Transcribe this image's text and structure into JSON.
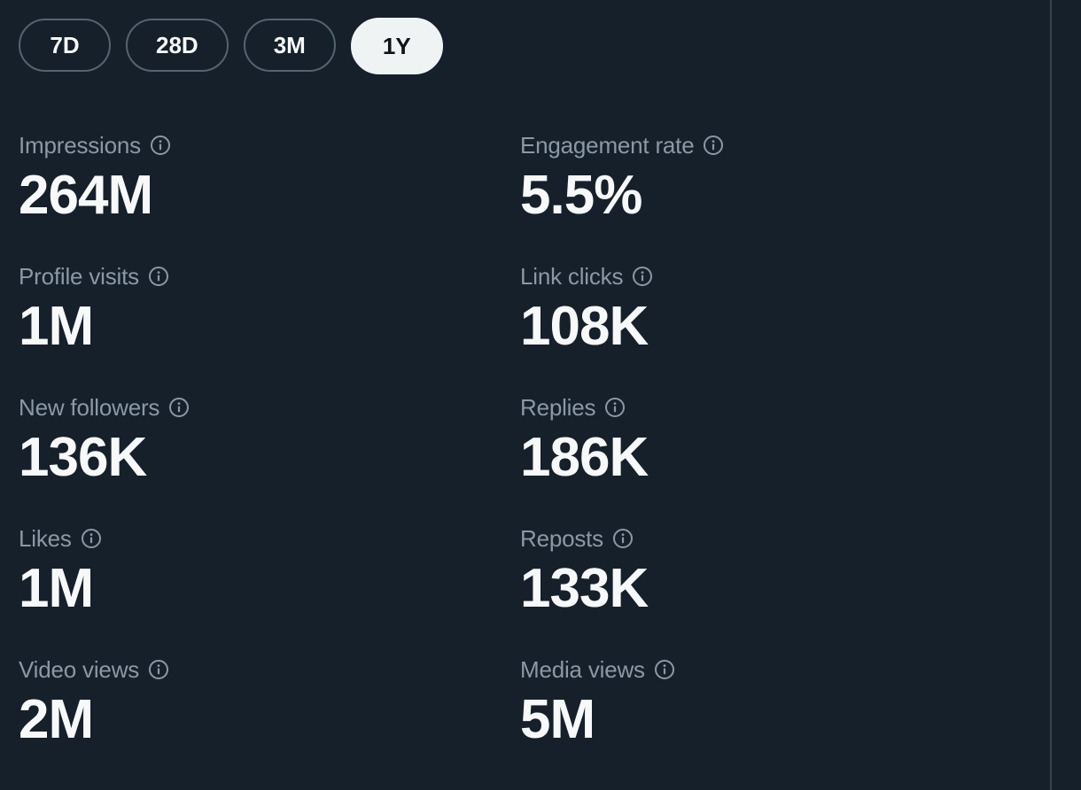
{
  "range_tabs": [
    {
      "label": "7D",
      "active": false
    },
    {
      "label": "28D",
      "active": false
    },
    {
      "label": "3M",
      "active": false
    },
    {
      "label": "1Y",
      "active": true
    }
  ],
  "metrics": [
    {
      "label": "Impressions",
      "value": "264M",
      "icon": "info-icon"
    },
    {
      "label": "Engagement rate",
      "value": "5.5%",
      "icon": "info-icon"
    },
    {
      "label": "Profile visits",
      "value": "1M",
      "icon": "info-icon"
    },
    {
      "label": "Link clicks",
      "value": "108K",
      "icon": "info-icon"
    },
    {
      "label": "New followers",
      "value": "136K",
      "icon": "info-icon"
    },
    {
      "label": "Replies",
      "value": "186K",
      "icon": "info-icon"
    },
    {
      "label": "Likes",
      "value": "1M",
      "icon": "info-icon"
    },
    {
      "label": "Reposts",
      "value": "133K",
      "icon": "info-icon"
    },
    {
      "label": "Video views",
      "value": "2M",
      "icon": "info-icon"
    },
    {
      "label": "Media views",
      "value": "5M",
      "icon": "info-icon"
    }
  ],
  "colors": {
    "background": "#15202b",
    "label": "#8b98a5",
    "value": "#f7f9f9",
    "active_tab_bg": "#eff3f4",
    "tab_border": "#536471"
  }
}
